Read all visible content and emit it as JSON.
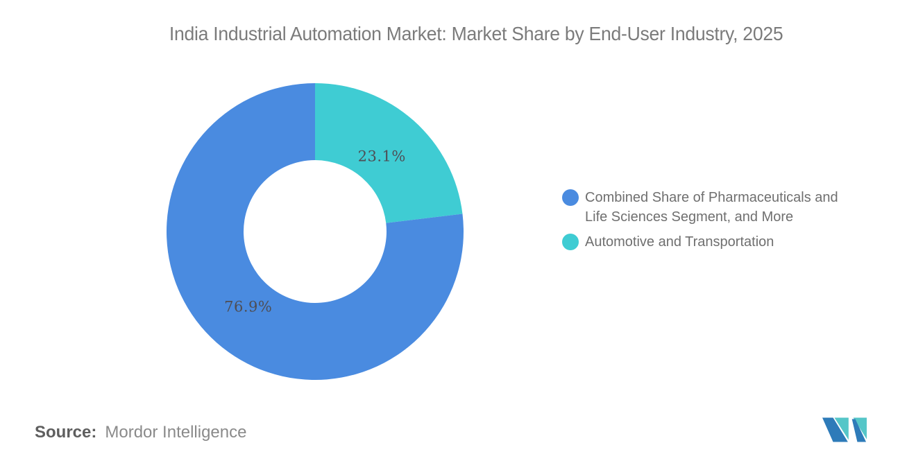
{
  "title": "India Industrial Automation Market: Market Share by End-User Industry, 2025",
  "chart_data": {
    "type": "pie",
    "subtype": "donut",
    "title": "India Industrial Automation Market: Market Share by End-User Industry, 2025",
    "unit": "%",
    "segments": [
      {
        "label": "Combined Share of Pharmaceuticals and Life Sciences Segment, and More",
        "value": 76.9,
        "color": "#4a8be0"
      },
      {
        "label": "Automotive and Transportation",
        "value": 23.1,
        "color": "#3fccd3"
      }
    ],
    "start_position": "12-oclock",
    "direction": "clockwise",
    "inner_radius_ratio": 0.48,
    "legend_position": "right",
    "data_labels": [
      "76.9%",
      "23.1%"
    ],
    "data_label_color": "#4e4e55",
    "title_color": "#7b7b7b"
  },
  "source": {
    "label": "Source:",
    "value": "Mordor Intelligence"
  },
  "logo": {
    "name": "mordor-intelligence-logo",
    "colors": {
      "blue": "#2e7bb9",
      "teal": "#55c6c8"
    }
  }
}
